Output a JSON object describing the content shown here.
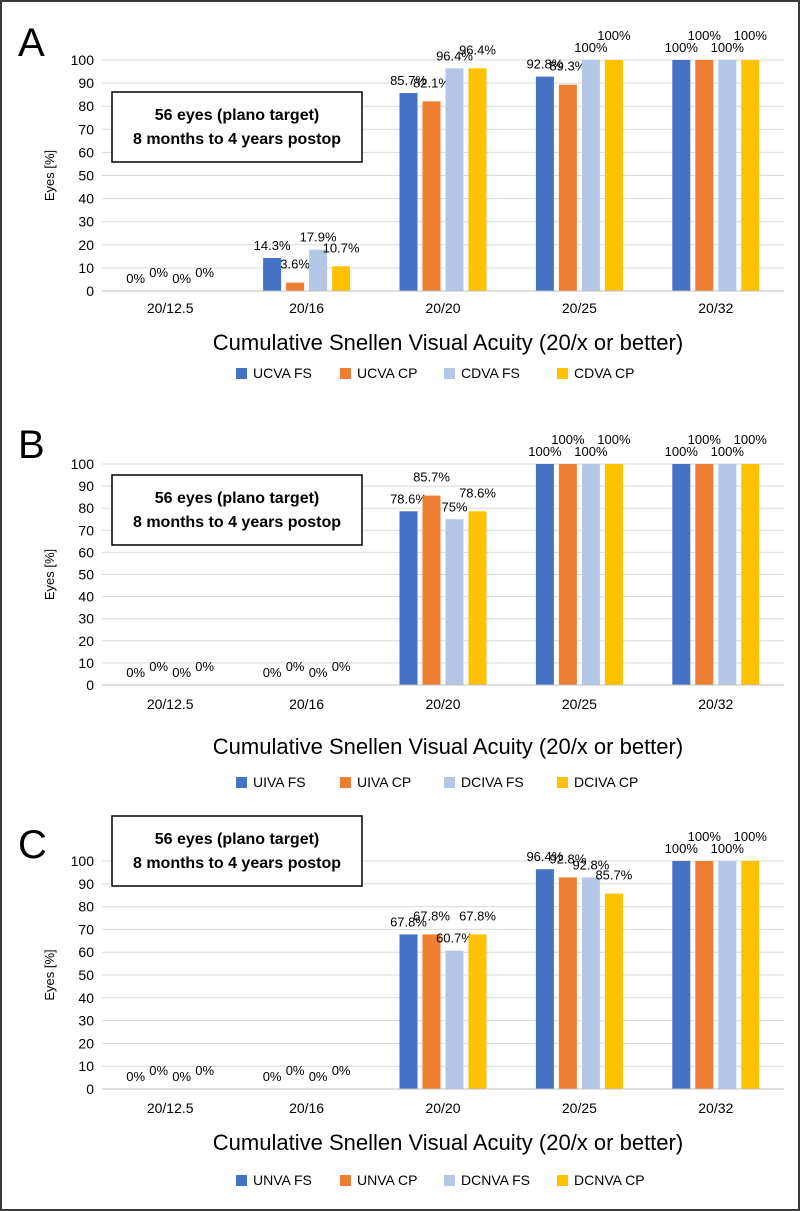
{
  "figure": {
    "colors": [
      "#4472C4",
      "#ED7D31",
      "#B4C7E7",
      "#FFC000"
    ],
    "grid_color": "#d9d9d9",
    "panels": [
      {
        "letter": "A",
        "box_lines": [
          "56 eyes (plano target)",
          "8 months to 4 years postop"
        ],
        "data_labels": [
          [
            "0%",
            "0%",
            "0%",
            "0%"
          ],
          [
            "14.3%",
            "3.6%",
            "17.9%",
            "10.7%"
          ],
          [
            "85.7%",
            "82.1%",
            "96.4%",
            "96.4%"
          ],
          [
            "92.8%",
            "89.3%",
            "100%",
            "100%"
          ],
          [
            "100%",
            "100%",
            "100%",
            "100%"
          ]
        ]
      },
      {
        "letter": "B",
        "box_lines": [
          "56 eyes (plano target)",
          "8 months to 4 years postop"
        ],
        "data_labels": [
          [
            "0%",
            "0%",
            "0%",
            "0%"
          ],
          [
            "0%",
            "0%",
            "0%",
            "0%"
          ],
          [
            "78.6%",
            "85.7%",
            "75%",
            "78.6%"
          ],
          [
            "100%",
            "100%",
            "100%",
            "100%"
          ],
          [
            "100%",
            "100%",
            "100%",
            "100%"
          ]
        ]
      },
      {
        "letter": "C",
        "box_lines": [
          "56 eyes (plano target)",
          "8 months to 4 years postop"
        ],
        "data_labels": [
          [
            "0%",
            "0%",
            "0%",
            "0%"
          ],
          [
            "0%",
            "0%",
            "0%",
            "0%"
          ],
          [
            "67.8%",
            "67.8%",
            "60.7%",
            "67.8%"
          ],
          [
            "96.4%",
            "92.8%",
            "92.8%",
            "85.7%"
          ],
          [
            "100%",
            "100%",
            "100%",
            "100%"
          ]
        ]
      }
    ]
  },
  "chart_data": [
    {
      "type": "bar",
      "title": "",
      "xlabel": "Cumulative Snellen Visual Acuity (20/x or better)",
      "ylabel": "Eyes [%]",
      "ylim": [
        0,
        100
      ],
      "yticks": [
        0,
        10,
        20,
        30,
        40,
        50,
        60,
        70,
        80,
        90,
        100
      ],
      "grid": true,
      "legend_position": "bottom",
      "categories": [
        "20/12.5",
        "20/16",
        "20/20",
        "20/25",
        "20/32"
      ],
      "series": [
        {
          "name": "UCVA FS",
          "values": [
            0,
            14.3,
            85.7,
            92.8,
            100
          ]
        },
        {
          "name": "UCVA CP",
          "values": [
            0,
            3.6,
            82.1,
            89.3,
            100
          ]
        },
        {
          "name": "CDVA FS",
          "values": [
            0,
            17.9,
            96.4,
            100,
            100
          ]
        },
        {
          "name": "CDVA CP",
          "values": [
            0,
            10.7,
            96.4,
            100,
            100
          ]
        }
      ]
    },
    {
      "type": "bar",
      "title": "",
      "xlabel": "Cumulative Snellen Visual Acuity (20/x or better)",
      "ylabel": "Eyes [%]",
      "ylim": [
        0,
        100
      ],
      "yticks": [
        0,
        10,
        20,
        30,
        40,
        50,
        60,
        70,
        80,
        90,
        100
      ],
      "grid": true,
      "legend_position": "bottom",
      "categories": [
        "20/12.5",
        "20/16",
        "20/20",
        "20/25",
        "20/32"
      ],
      "series": [
        {
          "name": "UIVA FS",
          "values": [
            0,
            0,
            78.6,
            100,
            100
          ]
        },
        {
          "name": "UIVA CP",
          "values": [
            0,
            0,
            85.7,
            100,
            100
          ]
        },
        {
          "name": "DCIVA FS",
          "values": [
            0,
            0,
            75,
            100,
            100
          ]
        },
        {
          "name": "DCIVA CP",
          "values": [
            0,
            0,
            78.6,
            100,
            100
          ]
        }
      ]
    },
    {
      "type": "bar",
      "title": "",
      "xlabel": "Cumulative Snellen Visual Acuity (20/x or better)",
      "ylabel": "Eyes [%]",
      "ylim": [
        0,
        100
      ],
      "yticks": [
        0,
        10,
        20,
        30,
        40,
        50,
        60,
        70,
        80,
        90,
        100
      ],
      "grid": true,
      "legend_position": "bottom",
      "categories": [
        "20/12.5",
        "20/16",
        "20/20",
        "20/25",
        "20/32"
      ],
      "series": [
        {
          "name": "UNVA FS",
          "values": [
            0,
            0,
            67.8,
            96.4,
            100
          ]
        },
        {
          "name": "UNVA CP",
          "values": [
            0,
            0,
            67.8,
            92.8,
            100
          ]
        },
        {
          "name": "DCNVA FS",
          "values": [
            0,
            0,
            60.7,
            92.8,
            100
          ]
        },
        {
          "name": "DCNVA CP",
          "values": [
            0,
            0,
            67.8,
            85.7,
            100
          ]
        }
      ]
    }
  ]
}
